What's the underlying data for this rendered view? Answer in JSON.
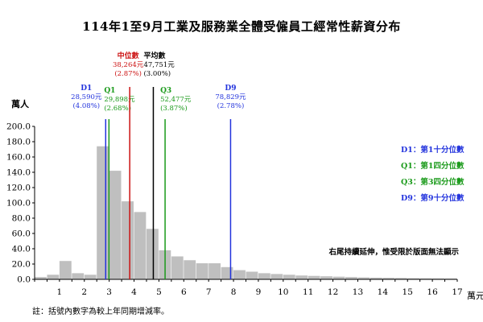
{
  "chart_data": {
    "type": "bar",
    "title": "114年1至9月工業及服務業全體受僱員工經常性薪資分布",
    "ylabel": "萬人",
    "xlabel": "萬元",
    "ylim": [
      0,
      200
    ],
    "y_ticks": [
      "0.0",
      "20.0",
      "40.0",
      "60.0",
      "80.0",
      "100.0",
      "120.0",
      "140.0",
      "160.0",
      "180.0",
      "200.0"
    ],
    "xlim": [
      0,
      17
    ],
    "x_ticks": [
      "1",
      "2",
      "3",
      "4",
      "5",
      "6",
      "7",
      "8",
      "9",
      "10",
      "11",
      "12",
      "13",
      "14",
      "15",
      "16",
      "17"
    ],
    "bin_width": 0.5,
    "bin_starts": [
      0,
      0.5,
      1,
      1.5,
      2,
      2.5,
      3,
      3.5,
      4,
      4.5,
      5,
      5.5,
      6,
      6.5,
      7,
      7.5,
      8,
      8.5,
      9,
      9.5,
      10,
      10.5,
      11,
      11.5,
      12,
      12.5,
      13,
      13.5,
      14,
      14.5,
      15,
      15.5,
      16,
      16.5
    ],
    "values": [
      3,
      6,
      24,
      8,
      6,
      174,
      142,
      102,
      88,
      66,
      38,
      30,
      25,
      21,
      21,
      16,
      12,
      10,
      8,
      7,
      6,
      5,
      4.5,
      4,
      3.5,
      3,
      2.5,
      2.2,
      2,
      1.8,
      1.5,
      1.3,
      1.2,
      1
    ],
    "bar_color": "#bfbfbf",
    "markers": [
      {
        "key": "d1",
        "label": "D1",
        "value_text": "28,590元",
        "change": "(4.08%)",
        "x": 2.859,
        "color": "#2233dd"
      },
      {
        "key": "q1",
        "label": "Q1",
        "value_text": "29,898元",
        "change": "(2.68%)",
        "x": 2.99,
        "color": "#1a9a1a"
      },
      {
        "key": "median",
        "label": "中位數",
        "value_text": "38,264元",
        "change": "(2.87%)",
        "x": 3.826,
        "color": "#cc1111"
      },
      {
        "key": "mean",
        "label": "平均數",
        "value_text": "47,751元",
        "change": "(3.00%)",
        "x": 4.775,
        "color": "#000000"
      },
      {
        "key": "q3",
        "label": "Q3",
        "value_text": "52,477元",
        "change": "(3.87%)",
        "x": 5.248,
        "color": "#1a9a1a"
      },
      {
        "key": "d9",
        "label": "D9",
        "value_text": "78,829元",
        "change": "(2.78%)",
        "x": 7.883,
        "color": "#2233dd"
      }
    ],
    "legend": [
      {
        "text": "D1：第1十分位數",
        "color": "#2233dd"
      },
      {
        "text": "Q1：第1四分位數",
        "color": "#1a9a1a"
      },
      {
        "text": "Q3：第3四分位數",
        "color": "#1a9a1a"
      },
      {
        "text": "D9：第9十分位數",
        "color": "#2233dd"
      }
    ],
    "annotation": "右尾持續延伸，惟受限於版面無法顯示",
    "note": "註：括號內數字為較上年同期增減率。"
  }
}
